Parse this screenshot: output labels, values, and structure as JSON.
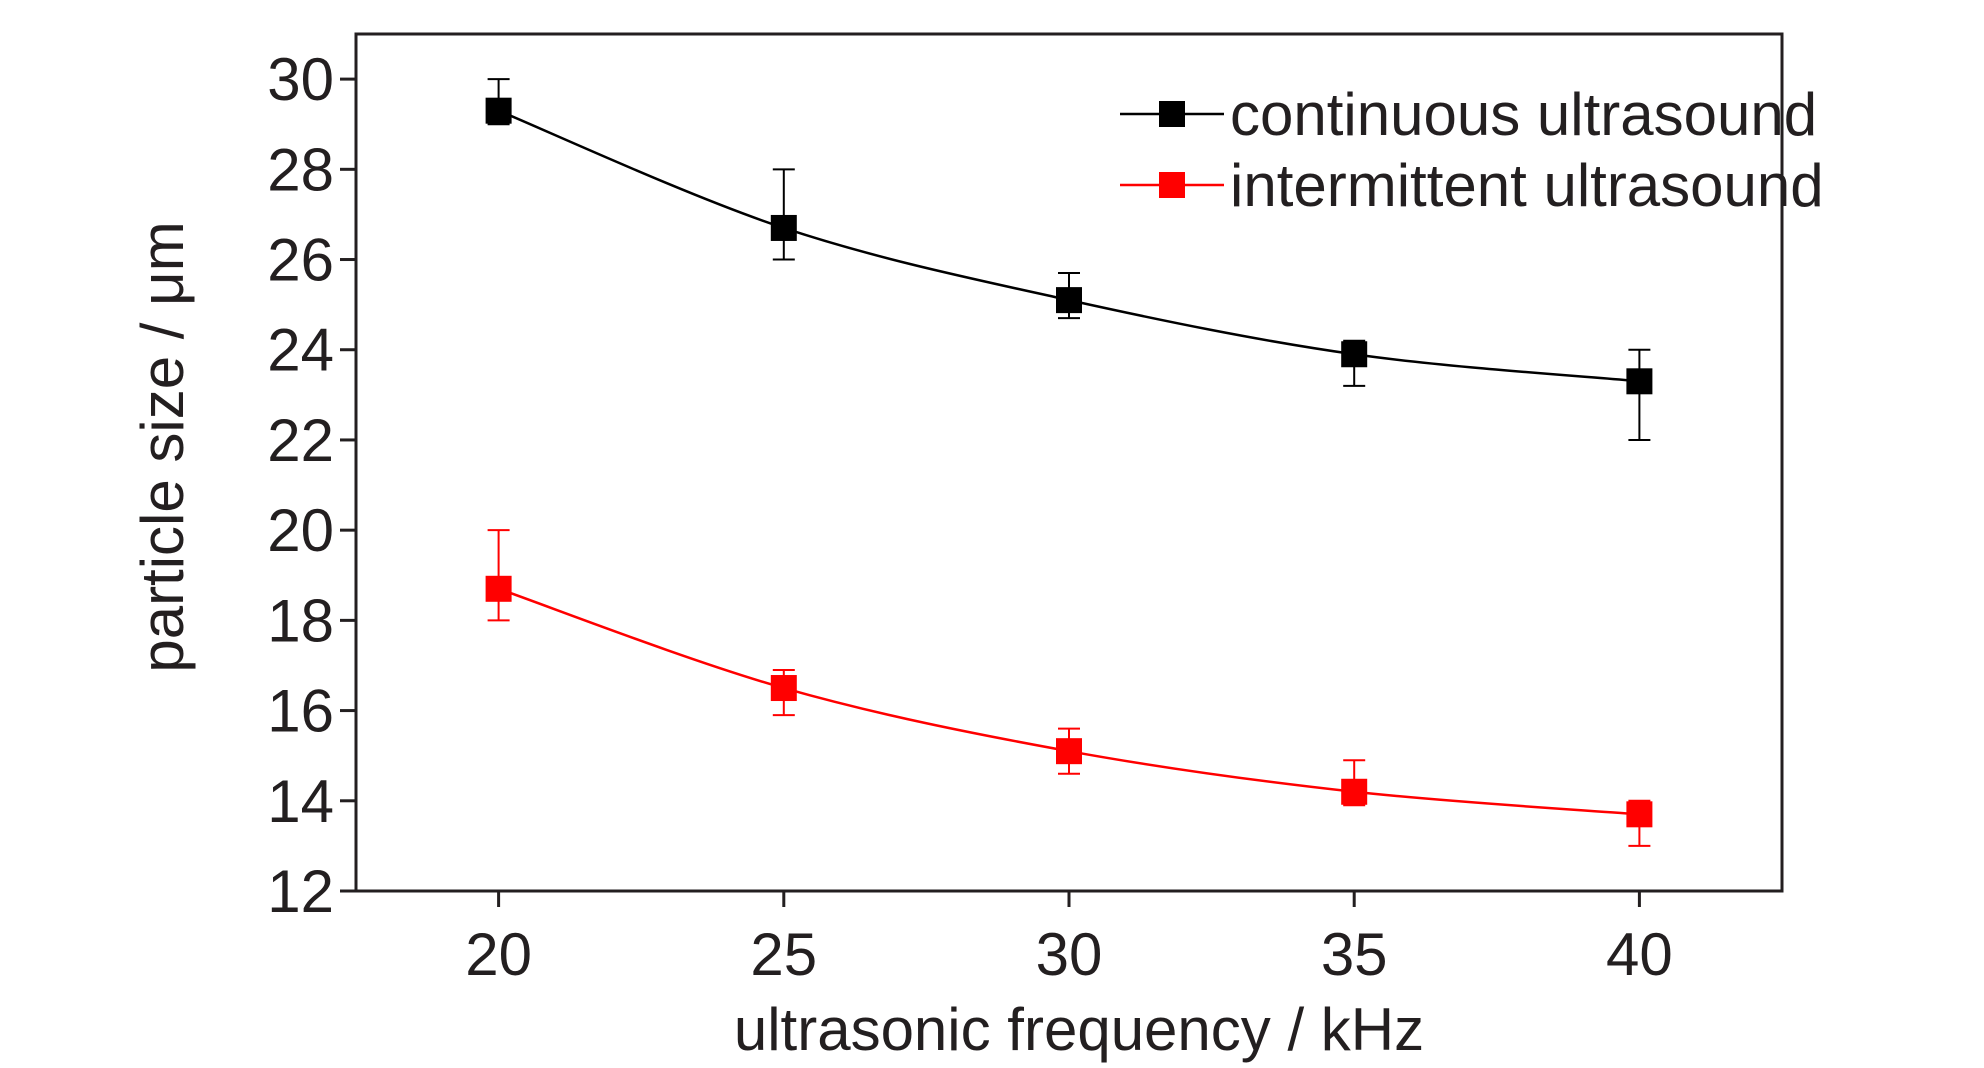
{
  "chart_data": {
    "type": "line",
    "title": "",
    "xlabel": "ultrasonic frequency / kHz",
    "ylabel": "particle size / μm",
    "x": [
      20,
      25,
      30,
      35,
      40
    ],
    "xlim": [
      17.5,
      42.5
    ],
    "ylim": [
      12,
      31
    ],
    "x_ticks": [
      20,
      25,
      30,
      35,
      40
    ],
    "y_ticks": [
      12,
      14,
      16,
      18,
      20,
      22,
      24,
      26,
      28,
      30
    ],
    "x_tick_labels": [
      "20",
      "25",
      "30",
      "35",
      "40"
    ],
    "y_tick_labels": [
      "12",
      "14",
      "16",
      "18",
      "20",
      "22",
      "24",
      "26",
      "28",
      "30"
    ],
    "grid": false,
    "legend_position": "top-right",
    "series": [
      {
        "name": "continuous ultrasound",
        "color": "#000000",
        "marker": "square",
        "values": [
          29.3,
          26.7,
          25.1,
          23.9,
          23.3
        ],
        "error_upper": [
          30.0,
          28.0,
          25.7,
          24.2,
          24.0
        ],
        "error_lower": [
          29.0,
          26.0,
          24.7,
          23.2,
          22.0
        ]
      },
      {
        "name": "intermittent ultrasound",
        "color": "#ff0000",
        "marker": "square",
        "values": [
          18.7,
          16.5,
          15.1,
          14.2,
          13.7
        ],
        "error_upper": [
          20.0,
          16.9,
          15.6,
          14.9,
          14.0
        ],
        "error_lower": [
          18.0,
          15.9,
          14.6,
          13.9,
          13.0
        ]
      }
    ]
  }
}
